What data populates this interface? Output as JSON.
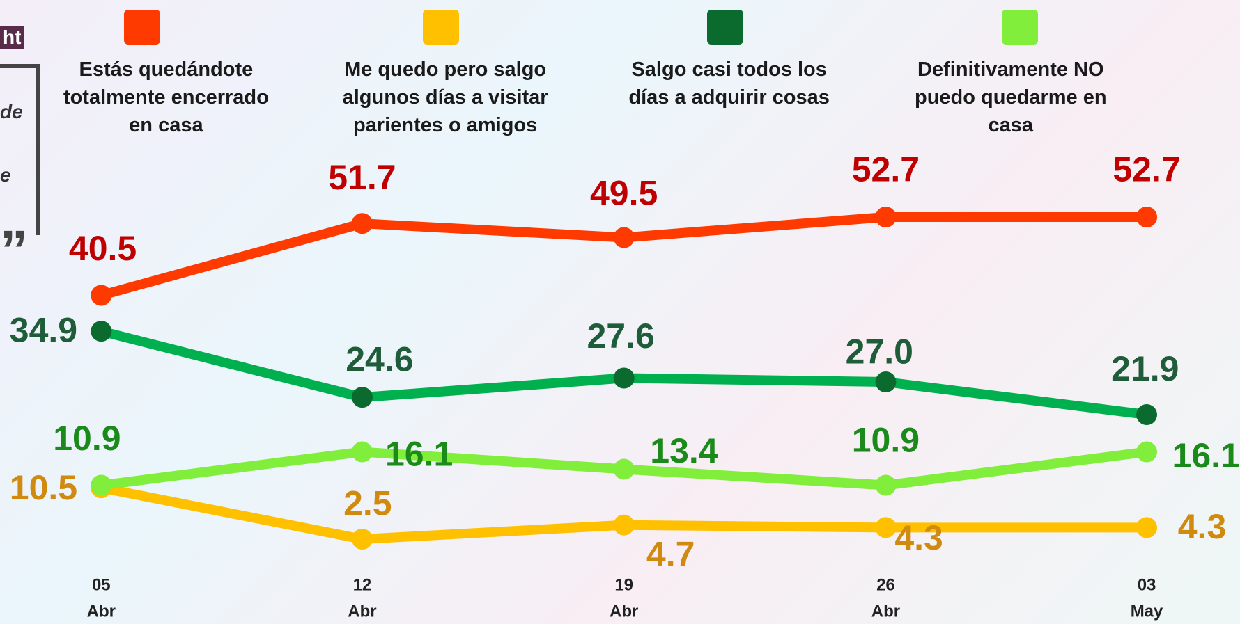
{
  "overlay": {
    "fragments": [
      "ht",
      "de",
      "e"
    ]
  },
  "chart_data": {
    "type": "line",
    "categories": [
      [
        "05",
        "Abr"
      ],
      [
        "12",
        "Abr"
      ],
      [
        "19",
        "Abr"
      ],
      [
        "26",
        "Abr"
      ],
      [
        "03",
        "May"
      ]
    ],
    "series": [
      {
        "name": "Estás quedándote totalmente encerrado en casa",
        "color": "#ff3a00",
        "values": [
          40.5,
          51.7,
          49.5,
          52.7,
          52.7
        ],
        "value_labels": [
          "40.5",
          "51.7",
          "49.5",
          "52.7",
          "52.7"
        ]
      },
      {
        "name": "Me quedo pero salgo algunos días a visitar parientes o amigos",
        "color": "#ffc000",
        "values": [
          10.5,
          2.5,
          4.7,
          4.3,
          4.3
        ],
        "value_labels": [
          "10.5",
          "2.5",
          "4.7",
          "4.3",
          "4.3"
        ]
      },
      {
        "name": "Salgo casi todos los días a adquirir cosas",
        "color": "#0b6b2e",
        "values": [
          34.9,
          24.6,
          27.6,
          27.0,
          21.9
        ],
        "value_labels": [
          "34.9",
          "24.6",
          "27.6",
          "27.0",
          "21.9"
        ]
      },
      {
        "name": "Definitivamente NO puedo quedarme en casa",
        "color": "#80ee3a",
        "values": [
          10.9,
          16.1,
          13.4,
          10.9,
          16.1
        ],
        "value_labels": [
          "10.9",
          "16.1",
          "13.4",
          "10.9",
          "16.1"
        ]
      }
    ]
  }
}
